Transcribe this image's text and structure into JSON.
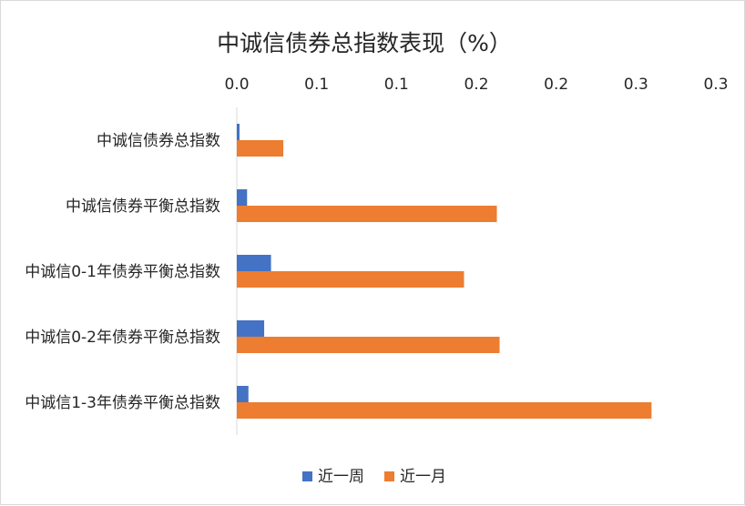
{
  "chart_data": {
    "type": "bar",
    "orientation": "horizontal",
    "title": "中诚信债券总指数表现（%）",
    "xlim": [
      0,
      0.35
    ],
    "x_tick_labels": [
      "0.0",
      "0.1",
      "0.1",
      "0.2",
      "0.2",
      "0.3",
      "0.3"
    ],
    "categories": [
      "中诚信债券总指数",
      "中诚信债券平衡总指数",
      "中诚信0-1年债券平衡总指数",
      "中诚信0-2年债券平衡总指数",
      "中诚信1-3年债券平衡总指数"
    ],
    "series": [
      {
        "name": "近一周",
        "color": "#4472c4",
        "values": [
          0.002,
          0.0075,
          0.025,
          0.02,
          0.0085
        ]
      },
      {
        "name": "近一月",
        "color": "#ed7d31",
        "values": [
          0.034,
          0.19,
          0.166,
          0.192,
          0.303
        ]
      }
    ],
    "legend_position": "bottom",
    "grid": false
  }
}
